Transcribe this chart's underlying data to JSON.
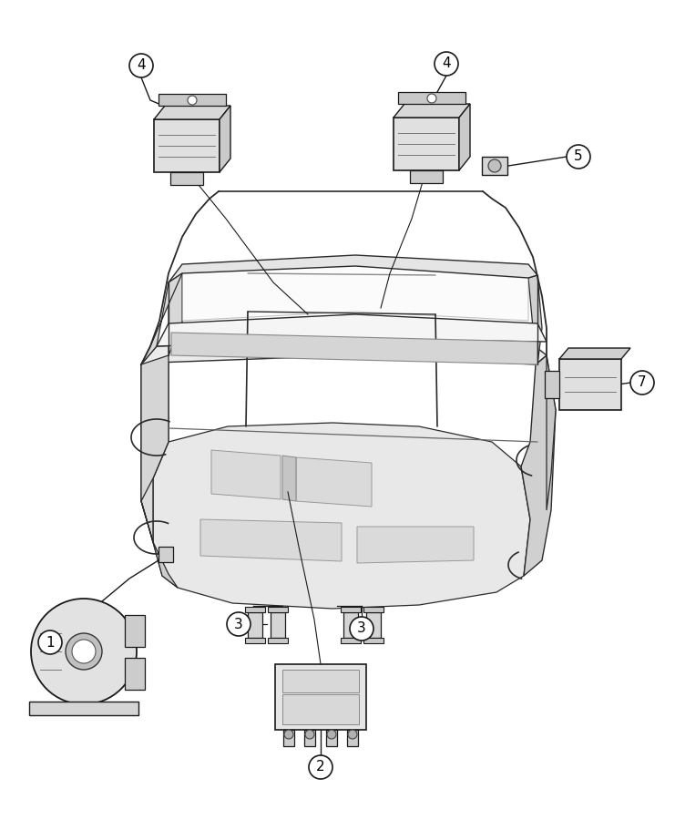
{
  "bg_color": "#ffffff",
  "fig_width": 7.41,
  "fig_height": 9.0,
  "dpi": 100,
  "line_color": "#1a1a1a",
  "label_font_size": 11,
  "circle_r": 13,
  "jeep_color": "#f0f0f0",
  "jeep_edge": "#2a2a2a",
  "component_fill": "#e2e2e2",
  "component_edge": "#1a1a1a"
}
